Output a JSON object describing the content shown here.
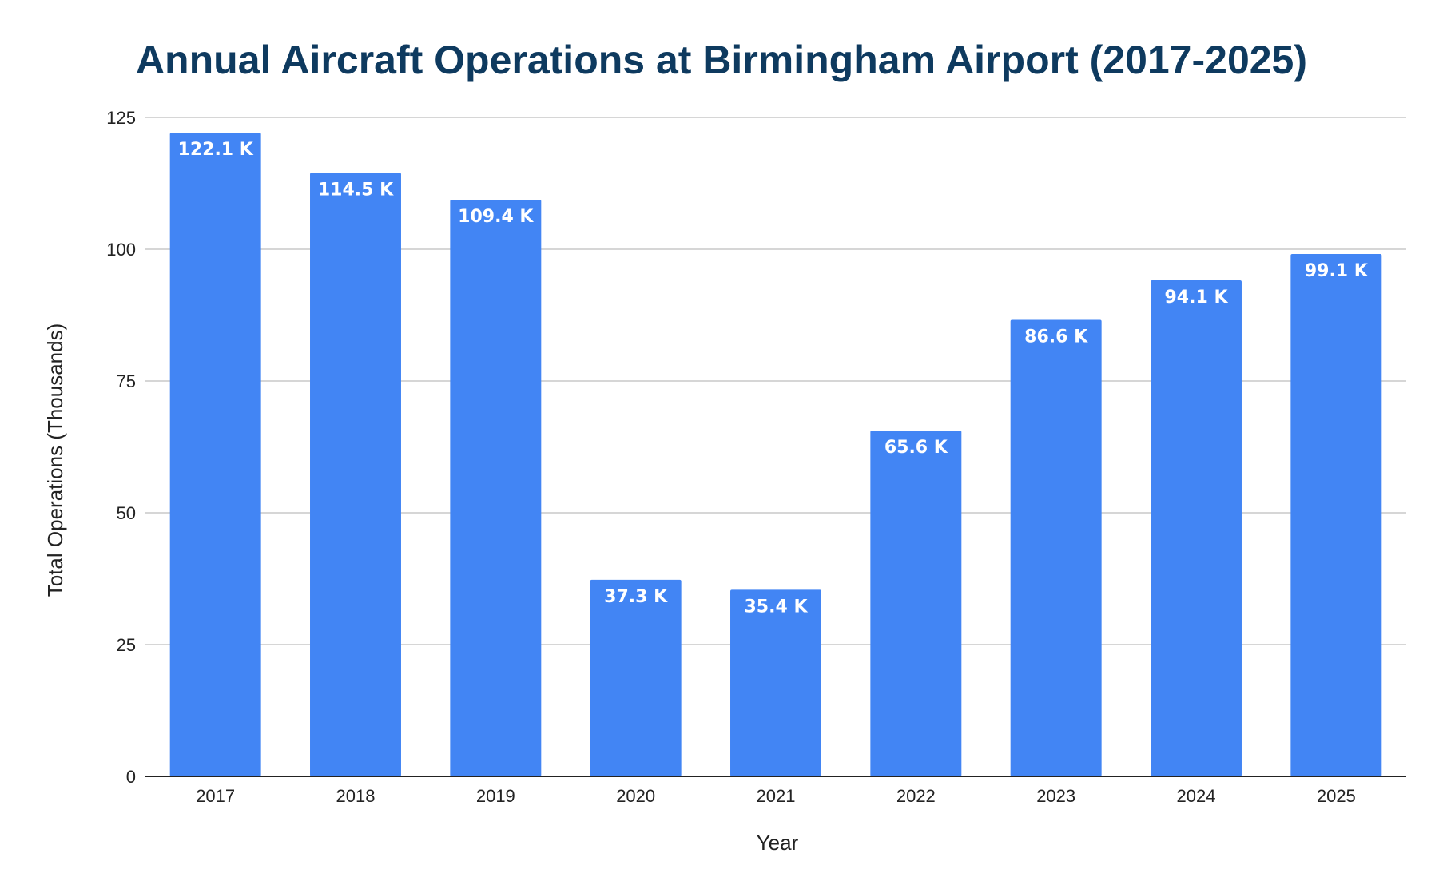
{
  "chart_data": {
    "type": "bar",
    "title": "Annual Aircraft Operations at Birmingham Airport (2017-2025)",
    "xlabel": "Year",
    "ylabel": "Total Operations (Thousands)",
    "categories": [
      "2017",
      "2018",
      "2019",
      "2020",
      "2021",
      "2022",
      "2023",
      "2024",
      "2025"
    ],
    "values": [
      122.1,
      114.5,
      109.4,
      37.3,
      35.4,
      65.6,
      86.6,
      94.1,
      99.1
    ],
    "data_labels": [
      "122.1 K",
      "114.5 K",
      "109.4 K",
      "37.3 K",
      "35.4 K",
      "65.6 K",
      "86.6 K",
      "94.1 K",
      "99.1 K"
    ],
    "ylim": [
      0,
      125
    ],
    "yticks": [
      "0",
      "25",
      "50",
      "75",
      "100",
      "125"
    ],
    "grid": true,
    "legend": "none",
    "colors": {
      "bar": "#4285f4",
      "title": "#0e3a5f",
      "data_label": "#ffffff"
    }
  }
}
